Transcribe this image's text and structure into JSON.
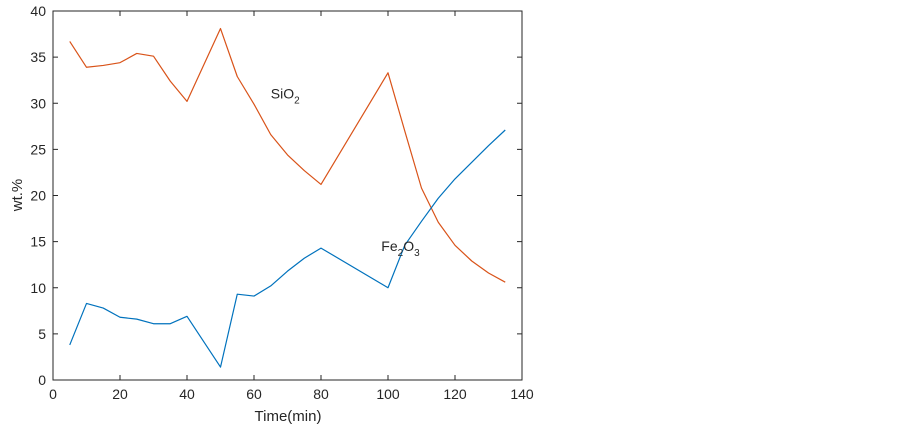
{
  "chart_data": {
    "type": "line",
    "title": "",
    "xlabel": "Time(min)",
    "ylabel": "wt.%",
    "xlim": [
      0,
      140
    ],
    "ylim": [
      0,
      40
    ],
    "xticks": [
      0,
      20,
      40,
      60,
      80,
      100,
      120,
      140
    ],
    "yticks": [
      0,
      5,
      10,
      15,
      20,
      25,
      30,
      35,
      40
    ],
    "grid": false,
    "legend": "none",
    "series": [
      {
        "name": "SiO",
        "subscript": "2",
        "color": "#D95319",
        "label_at": [
          65,
          30.5
        ],
        "x": [
          5,
          10,
          15,
          20,
          25,
          30,
          35,
          40,
          50,
          55,
          60,
          65,
          70,
          75,
          80,
          100,
          105,
          110,
          115,
          120,
          125,
          130,
          135
        ],
        "y": [
          36.7,
          33.9,
          34.1,
          34.4,
          35.4,
          35.1,
          32.4,
          30.2,
          38.1,
          32.9,
          29.9,
          26.6,
          24.4,
          22.7,
          21.2,
          33.3,
          27.0,
          20.8,
          17.1,
          14.6,
          12.9,
          11.6,
          10.6
        ]
      },
      {
        "name": "Fe",
        "subscript": "2",
        "name_suffix": "O",
        "suffix_subscript": "3",
        "color": "#0072BD",
        "label_at": [
          98,
          14.0
        ],
        "x": [
          5,
          10,
          15,
          20,
          25,
          30,
          35,
          40,
          50,
          55,
          60,
          65,
          70,
          75,
          80,
          100,
          105,
          110,
          115,
          120,
          125,
          130,
          135
        ],
        "y": [
          3.8,
          8.3,
          7.8,
          6.8,
          6.6,
          6.1,
          6.1,
          6.9,
          1.4,
          9.3,
          9.1,
          10.2,
          11.8,
          13.2,
          14.3,
          10.0,
          14.6,
          17.2,
          19.7,
          21.8,
          23.6,
          25.4,
          27.1
        ]
      }
    ]
  }
}
